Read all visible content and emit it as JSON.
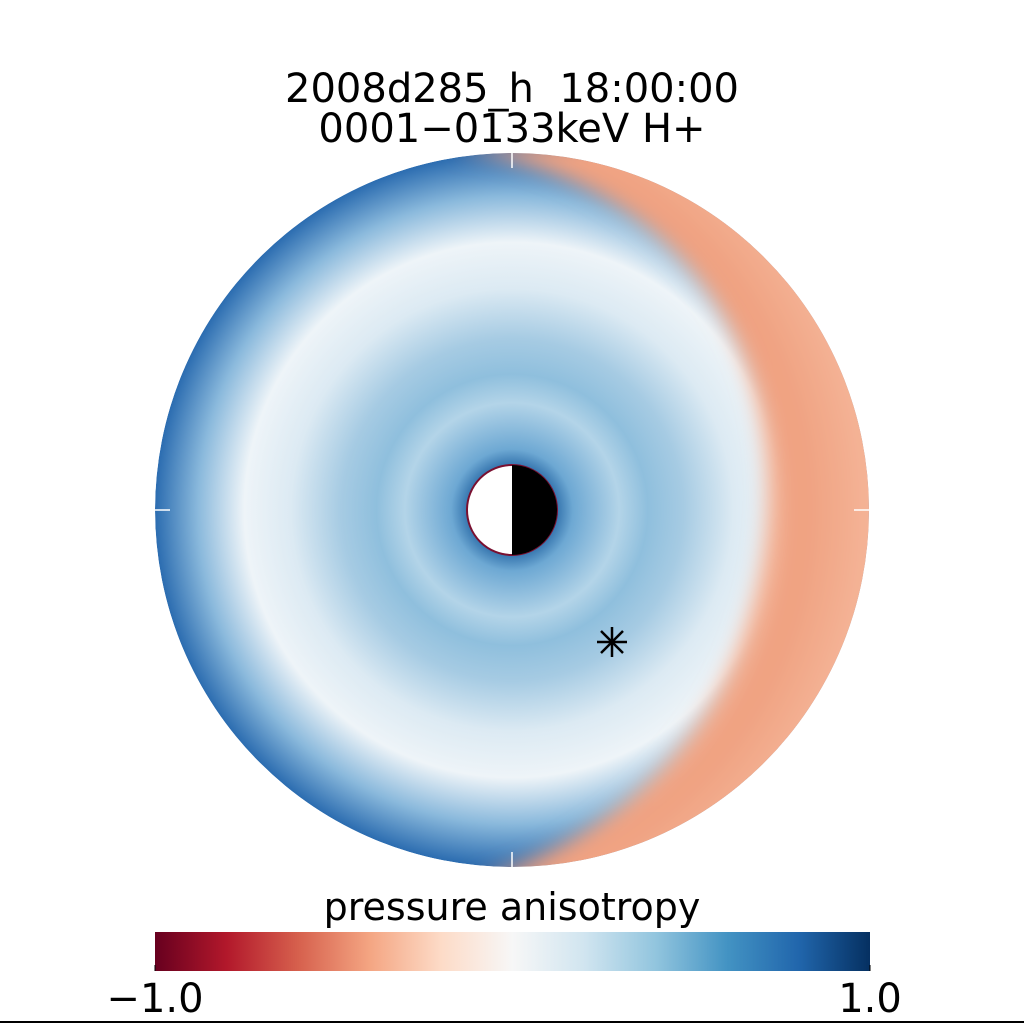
{
  "chart_data": {
    "type": "polar-map",
    "title": "2008d285_h  18:00:00",
    "subtitle": "0001−0133keV H+",
    "colorbar": {
      "label": "pressure anisotropy",
      "lim": [
        -1,
        1
      ],
      "ticks": [
        {
          "value": -1,
          "label": "−1.0"
        },
        {
          "value": 1,
          "label": "1.0"
        }
      ],
      "colors": [
        "#67001f",
        "#b2182b",
        "#d6604d",
        "#f4a582",
        "#fddbc7",
        "#f7f7f7",
        "#d1e5f0",
        "#92c5de",
        "#4393c3",
        "#2166ac",
        "#053061"
      ]
    }
  }
}
